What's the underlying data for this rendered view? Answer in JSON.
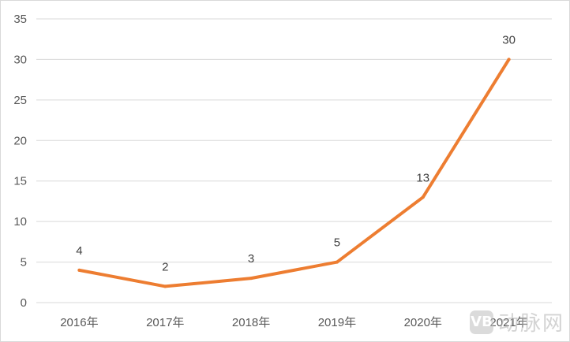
{
  "chart_data": {
    "type": "line",
    "title": "",
    "xlabel": "",
    "ylabel": "",
    "categories": [
      "2016年",
      "2017年",
      "2018年",
      "2019年",
      "2020年",
      "2021年"
    ],
    "series": [
      {
        "values": [
          4,
          2,
          3,
          5,
          13,
          30
        ],
        "color": "#ED7D31"
      }
    ],
    "data_labels": [
      "4",
      "2",
      "3",
      "5",
      "13",
      "30"
    ],
    "yticks": [
      "0",
      "5",
      "10",
      "15",
      "20",
      "25",
      "30",
      "35"
    ],
    "ylim": [
      0,
      35
    ],
    "grid": true,
    "legend": "none"
  },
  "colors": {
    "line": "#ED7D31",
    "grid": "#d9d9d9",
    "text": "#595959"
  },
  "watermark": {
    "logo_text": "VB",
    "text": "动脉网"
  }
}
